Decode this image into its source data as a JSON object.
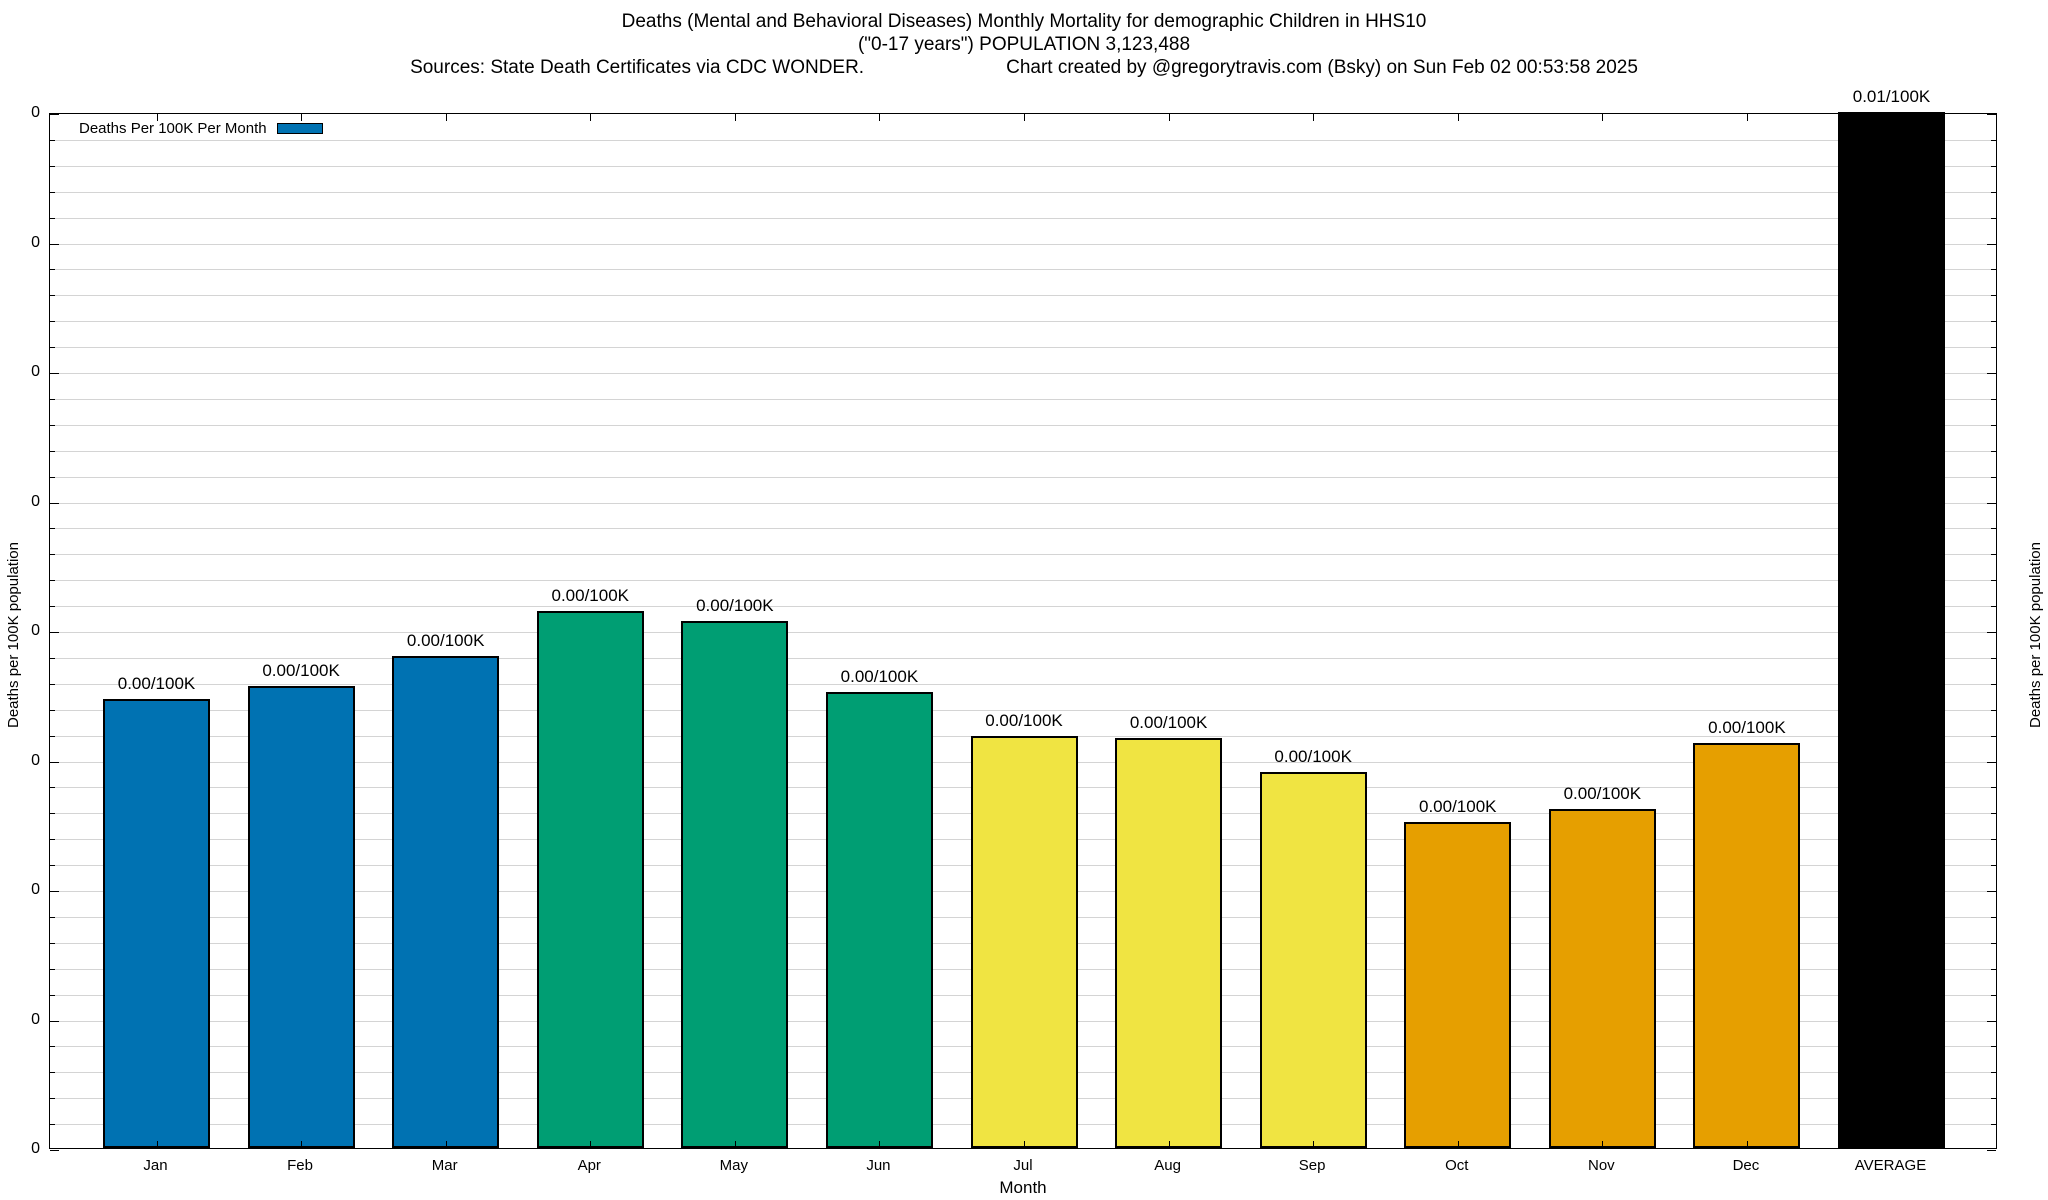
{
  "title": {
    "line1": "Deaths (Mental and Behavioral Diseases) Monthly Mortality for demographic Children in HHS10",
    "line2": "(\"0-17 years\") POPULATION 3,123,488",
    "line3_left": "Sources: State Death Certificates via CDC WONDER.",
    "line3_right": "Chart created by @gregorytravis.com (Bsky) on Sun Feb 02 00:53:58 2025"
  },
  "legend": {
    "label": "Deaths Per 100K Per Month",
    "swatch_color": "#0072B2"
  },
  "axes": {
    "xlabel": "Month",
    "ylabel_left": "Deaths per 100K population",
    "ylabel_right": "Deaths per 100K population",
    "ytick_label": "0",
    "ytick_count": 9,
    "minor_divisions_per_major": 5,
    "grid": "horizontal minor+major, light gray"
  },
  "colors": {
    "blue": "#0072B2",
    "green": "#009E73",
    "yellow": "#F0E442",
    "orange": "#E69F00",
    "black": "#000000",
    "gridline": "#d4d4d4"
  },
  "chart_data": {
    "type": "bar",
    "title": "Deaths (Mental and Behavioral Diseases) Monthly Mortality for demographic Children in HHS10 (\"0-17 years\") POPULATION 3,123,488",
    "xlabel": "Month",
    "ylabel": "Deaths per 100K population",
    "legend_position": "top-left-inside",
    "categories": [
      "Jan",
      "Feb",
      "Mar",
      "Apr",
      "May",
      "Jun",
      "Jul",
      "Aug",
      "Sep",
      "Oct",
      "Nov",
      "Dec",
      "AVERAGE"
    ],
    "value_labels": [
      "0.00/100K",
      "0.00/100K",
      "0.00/100K",
      "0.00/100K",
      "0.00/100K",
      "0.00/100K",
      "0.00/100K",
      "0.00/100K",
      "0.00/100K",
      "0.00/100K",
      "0.00/100K",
      "0.00/100K",
      "0.01/100K"
    ],
    "ytick_labels": [
      "0",
      "0",
      "0",
      "0",
      "0",
      "0",
      "0",
      "0",
      "0"
    ],
    "bars": [
      {
        "label": "Jan",
        "value_label": "0.00/100K",
        "height_frac": 0.433,
        "color": "#0072B2"
      },
      {
        "label": "Feb",
        "value_label": "0.00/100K",
        "height_frac": 0.446,
        "color": "#0072B2"
      },
      {
        "label": "Mar",
        "value_label": "0.00/100K",
        "height_frac": 0.475,
        "color": "#0072B2"
      },
      {
        "label": "Apr",
        "value_label": "0.00/100K",
        "height_frac": 0.518,
        "color": "#009E73"
      },
      {
        "label": "May",
        "value_label": "0.00/100K",
        "height_frac": 0.509,
        "color": "#009E73"
      },
      {
        "label": "Jun",
        "value_label": "0.00/100K",
        "height_frac": 0.44,
        "color": "#009E73"
      },
      {
        "label": "Jul",
        "value_label": "0.00/100K",
        "height_frac": 0.398,
        "color": "#F0E442"
      },
      {
        "label": "Aug",
        "value_label": "0.00/100K",
        "height_frac": 0.396,
        "color": "#F0E442"
      },
      {
        "label": "Sep",
        "value_label": "0.00/100K",
        "height_frac": 0.363,
        "color": "#F0E442"
      },
      {
        "label": "Oct",
        "value_label": "0.00/100K",
        "height_frac": 0.315,
        "color": "#E69F00"
      },
      {
        "label": "Nov",
        "value_label": "0.00/100K",
        "height_frac": 0.327,
        "color": "#E69F00"
      },
      {
        "label": "Dec",
        "value_label": "0.00/100K",
        "height_frac": 0.391,
        "color": "#E69F00"
      },
      {
        "label": "AVERAGE",
        "value_label": "0.01/100K",
        "height_frac": 1.0,
        "color": "#000000",
        "clipped_at_top": true
      }
    ]
  }
}
